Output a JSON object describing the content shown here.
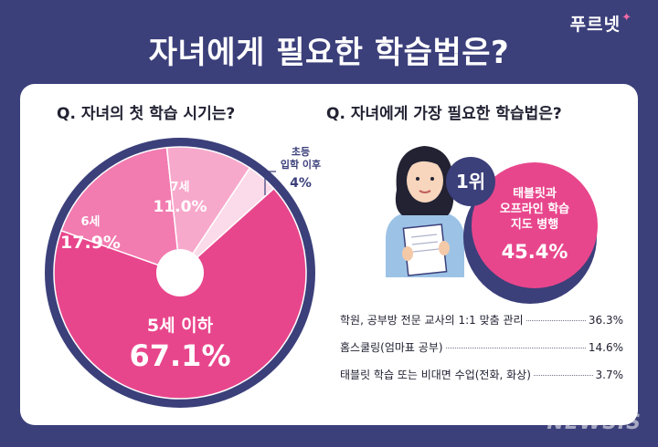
{
  "brand": "푸르넷",
  "title": "자녀에게 필요한 학습법은?",
  "watermark": "NEWSIS",
  "left_question": "Q. 자녀의 첫 학습 시기는?",
  "right_question": "Q. 자녀에게 가장 필요한 학습법은?",
  "colors": {
    "navy": "#3b3f7a",
    "pink_main": "#e8468c",
    "pink_mid": "#f27bb0",
    "pink_light": "#f7a9cc",
    "pink_pale": "#fbdbe9"
  },
  "chart_data": [
    {
      "type": "pie",
      "title": "Q. 자녀의 첫 학습 시기는?",
      "slices": [
        {
          "label": "5세 이하",
          "value": 67.1,
          "display": "67.1%",
          "color": "#e8468c"
        },
        {
          "label": "6세",
          "value": 17.9,
          "display": "17.9%",
          "color": "#f27bb0"
        },
        {
          "label": "7세",
          "value": 11.0,
          "display": "11.0%",
          "color": "#f7a9cc"
        },
        {
          "label": "초등\n입학 이후",
          "value": 4,
          "display": "4%",
          "color": "#fbdbe9"
        }
      ]
    },
    {
      "type": "table",
      "title": "Q. 자녀에게 가장 필요한 학습법은?",
      "top": {
        "rank": "1위",
        "label": "태블릿과\n오프라인 학습\n지도 병행",
        "value": 45.4,
        "display": "45.4%"
      },
      "rows": [
        {
          "label": "학원, 공부방 전문 교사의 1:1 맞춤 관리",
          "value": 36.3,
          "display": "36.3%"
        },
        {
          "label": "홈스쿨링(엄마표 공부)",
          "value": 14.6,
          "display": "14.6%"
        },
        {
          "label": "태블릿 학습 또는 비대면 수업(전화, 화상)",
          "value": 3.7,
          "display": "3.7%"
        }
      ]
    }
  ]
}
